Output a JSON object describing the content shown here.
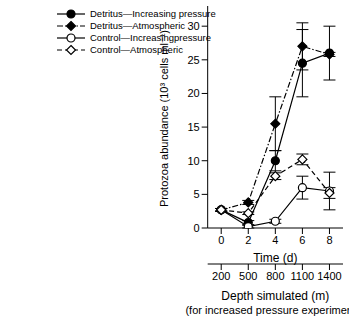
{
  "chart_data": {
    "type": "line",
    "x": [
      0,
      2,
      4,
      6,
      8
    ],
    "xlabel": "Time (d)",
    "ylabel": "Protozoa abundance (10³ cells ml⁻¹)",
    "xlim": [
      -1,
      9
    ],
    "xticks": [
      0,
      2,
      4,
      6,
      8
    ],
    "ylim": [
      0,
      33
    ],
    "yticks": [
      0,
      5,
      10,
      15,
      20,
      25,
      30
    ],
    "x2label": "Depth simulated (m)",
    "x2label_note": "(for increased pressure experiments)",
    "x2lim": [
      -1,
      9
    ],
    "x2ticks": [
      {
        "value": 0,
        "label": "200"
      },
      {
        "value": 2,
        "label": "500"
      },
      {
        "value": 4,
        "label": "800"
      },
      {
        "value": 6,
        "label": "1100"
      },
      {
        "value": 8,
        "label": "1400"
      }
    ],
    "legend": "upper left",
    "grid": false,
    "series": [
      {
        "name": "Detritus—Increasing pressure",
        "color": "#000000",
        "marker": "circle",
        "line_style": "solid",
        "values": [
          2.7,
          0.8,
          10,
          24.5,
          26
        ],
        "errors": [
          0.2,
          0.3,
          1.5,
          5,
          4
        ]
      },
      {
        "name": "Detritus—Atmospheric",
        "color": "#000000",
        "marker": "diamond",
        "line_style": "dashdot",
        "values": [
          2.7,
          3.8,
          15.5,
          27,
          25.8
        ],
        "errors": [
          0.2,
          0.3,
          4,
          3.5,
          0.3
        ]
      },
      {
        "name": "Control—Increasingpressure",
        "color": "#000000",
        "marker": "circle_open",
        "line_style": "solid",
        "values": [
          2.7,
          0.2,
          1,
          6,
          5.5
        ],
        "errors": [
          0.2,
          0.2,
          0.3,
          1.7,
          2.8
        ]
      },
      {
        "name": "Control—Atmospheric",
        "color": "#000000",
        "marker": "diamond_open",
        "line_style": "dashed",
        "values": [
          2.7,
          2.2,
          7.7,
          10.2,
          5.2
        ],
        "errors": [
          0.2,
          0.2,
          0.5,
          0.8,
          0.8
        ]
      }
    ]
  }
}
